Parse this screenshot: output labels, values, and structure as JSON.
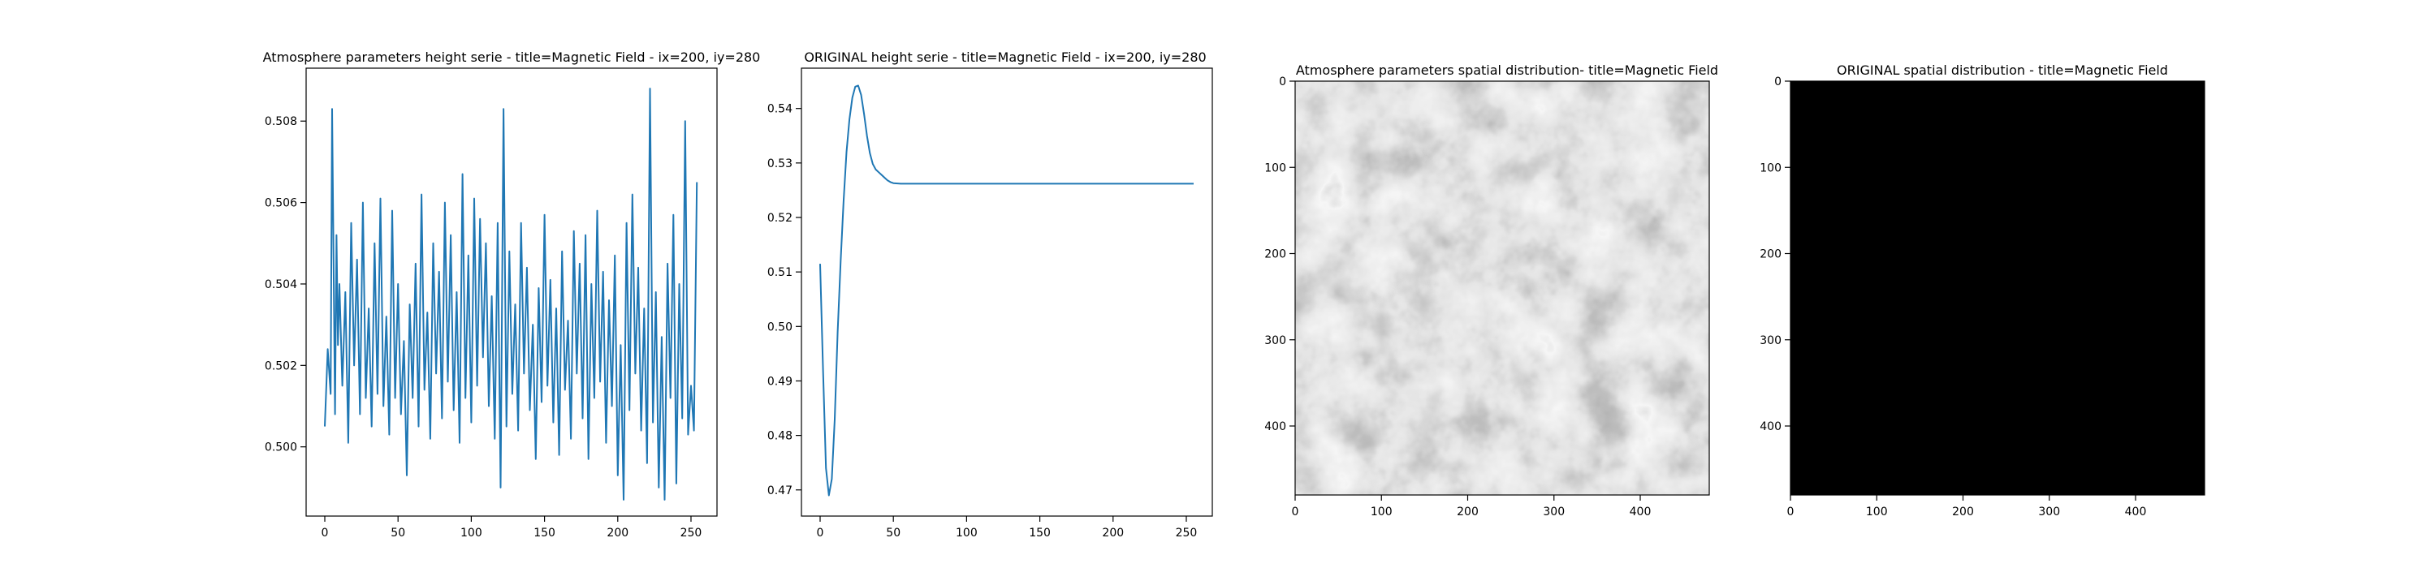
{
  "colors": {
    "series": "#1f77b4",
    "axis": "#000000",
    "background": "#ffffff"
  },
  "chart_data": [
    {
      "type": "line",
      "title": "Atmosphere parameters height serie - title=Magnetic Field - ix=200, iy=280",
      "xlabel": "",
      "ylabel": "",
      "xlim": [
        -12.75,
        267.75
      ],
      "ylim": [
        0.4983,
        0.5093
      ],
      "xticks": [
        0,
        50,
        100,
        150,
        200,
        250
      ],
      "yticks": [
        0.5,
        0.502,
        0.504,
        0.506,
        0.508
      ],
      "ytick_labels": [
        "0.500",
        "0.502",
        "0.504",
        "0.506",
        "0.508"
      ],
      "grid": false,
      "series": [
        {
          "color": "#1f77b4",
          "points": [
            [
              0,
              0.5005
            ],
            [
              2,
              0.5024
            ],
            [
              4,
              0.5013
            ],
            [
              5,
              0.5083
            ],
            [
              7,
              0.5008
            ],
            [
              8,
              0.5052
            ],
            [
              9,
              0.5025
            ],
            [
              10,
              0.504
            ],
            [
              12,
              0.5015
            ],
            [
              14,
              0.5038
            ],
            [
              16,
              0.5001
            ],
            [
              18,
              0.5055
            ],
            [
              20,
              0.502
            ],
            [
              22,
              0.5046
            ],
            [
              24,
              0.5008
            ],
            [
              26,
              0.506
            ],
            [
              28,
              0.5012
            ],
            [
              30,
              0.5034
            ],
            [
              32,
              0.5005
            ],
            [
              34,
              0.505
            ],
            [
              36,
              0.5013
            ],
            [
              38,
              0.5061
            ],
            [
              40,
              0.501
            ],
            [
              42,
              0.5032
            ],
            [
              44,
              0.5003
            ],
            [
              46,
              0.5058
            ],
            [
              48,
              0.5012
            ],
            [
              50,
              0.504
            ],
            [
              52,
              0.5008
            ],
            [
              54,
              0.5026
            ],
            [
              56,
              0.4993
            ],
            [
              58,
              0.5035
            ],
            [
              60,
              0.5012
            ],
            [
              62,
              0.5045
            ],
            [
              64,
              0.5005
            ],
            [
              66,
              0.5062
            ],
            [
              68,
              0.5014
            ],
            [
              70,
              0.5033
            ],
            [
              72,
              0.5002
            ],
            [
              74,
              0.505
            ],
            [
              76,
              0.5018
            ],
            [
              78,
              0.5043
            ],
            [
              80,
              0.5007
            ],
            [
              82,
              0.506
            ],
            [
              84,
              0.5016
            ],
            [
              86,
              0.5052
            ],
            [
              88,
              0.5009
            ],
            [
              90,
              0.5038
            ],
            [
              92,
              0.5001
            ],
            [
              94,
              0.5067
            ],
            [
              96,
              0.5012
            ],
            [
              98,
              0.5047
            ],
            [
              100,
              0.5006
            ],
            [
              102,
              0.5061
            ],
            [
              104,
              0.5015
            ],
            [
              106,
              0.5056
            ],
            [
              108,
              0.5022
            ],
            [
              110,
              0.505
            ],
            [
              112,
              0.501
            ],
            [
              114,
              0.5037
            ],
            [
              116,
              0.5002
            ],
            [
              118,
              0.5055
            ],
            [
              120,
              0.499
            ],
            [
              122,
              0.5083
            ],
            [
              124,
              0.5005
            ],
            [
              126,
              0.5048
            ],
            [
              128,
              0.5013
            ],
            [
              130,
              0.5035
            ],
            [
              132,
              0.5004
            ],
            [
              134,
              0.5055
            ],
            [
              136,
              0.5018
            ],
            [
              138,
              0.5044
            ],
            [
              140,
              0.5009
            ],
            [
              142,
              0.503
            ],
            [
              144,
              0.4997
            ],
            [
              146,
              0.5039
            ],
            [
              148,
              0.5011
            ],
            [
              150,
              0.5057
            ],
            [
              152,
              0.5015
            ],
            [
              154,
              0.5041
            ],
            [
              156,
              0.5006
            ],
            [
              158,
              0.5034
            ],
            [
              160,
              0.4998
            ],
            [
              162,
              0.5048
            ],
            [
              164,
              0.5014
            ],
            [
              166,
              0.5031
            ],
            [
              168,
              0.5002
            ],
            [
              170,
              0.5053
            ],
            [
              172,
              0.5018
            ],
            [
              174,
              0.5045
            ],
            [
              176,
              0.5007
            ],
            [
              178,
              0.5052
            ],
            [
              180,
              0.4997
            ],
            [
              182,
              0.504
            ],
            [
              184,
              0.5012
            ],
            [
              186,
              0.5058
            ],
            [
              188,
              0.5016
            ],
            [
              190,
              0.5043
            ],
            [
              192,
              0.5001
            ],
            [
              194,
              0.5036
            ],
            [
              196,
              0.501
            ],
            [
              198,
              0.5047
            ],
            [
              200,
              0.4993
            ],
            [
              202,
              0.5025
            ],
            [
              204,
              0.4987
            ],
            [
              206,
              0.5055
            ],
            [
              208,
              0.5009
            ],
            [
              210,
              0.5062
            ],
            [
              212,
              0.5018
            ],
            [
              214,
              0.5044
            ],
            [
              216,
              0.5004
            ],
            [
              218,
              0.5034
            ],
            [
              220,
              0.4996
            ],
            [
              222,
              0.5088
            ],
            [
              224,
              0.5006
            ],
            [
              226,
              0.5038
            ],
            [
              228,
              0.499
            ],
            [
              230,
              0.5027
            ],
            [
              232,
              0.4987
            ],
            [
              234,
              0.5045
            ],
            [
              236,
              0.5012
            ],
            [
              238,
              0.5057
            ],
            [
              240,
              0.4991
            ],
            [
              242,
              0.504
            ],
            [
              244,
              0.5007
            ],
            [
              246,
              0.508
            ],
            [
              248,
              0.5003
            ],
            [
              250,
              0.5015
            ],
            [
              252,
              0.5004
            ],
            [
              254,
              0.5065
            ]
          ]
        }
      ]
    },
    {
      "type": "line",
      "title": "ORIGINAL height serie - title=Magnetic Field - ix=200, iy=280",
      "xlabel": "",
      "ylabel": "",
      "xlim": [
        -12.75,
        267.75
      ],
      "ylim": [
        0.4652,
        0.5474
      ],
      "xticks": [
        0,
        50,
        100,
        150,
        200,
        250
      ],
      "yticks": [
        0.47,
        0.48,
        0.49,
        0.5,
        0.51,
        0.52,
        0.53,
        0.54
      ],
      "ytick_labels": [
        "0.47",
        "0.48",
        "0.49",
        "0.50",
        "0.51",
        "0.52",
        "0.53",
        "0.54"
      ],
      "grid": false,
      "series": [
        {
          "color": "#1f77b4",
          "points": [
            [
              0,
              0.5115
            ],
            [
              2,
              0.492
            ],
            [
              4,
              0.474
            ],
            [
              6,
              0.469
            ],
            [
              8,
              0.472
            ],
            [
              10,
              0.483
            ],
            [
              12,
              0.499
            ],
            [
              14,
              0.512
            ],
            [
              16,
              0.523
            ],
            [
              18,
              0.532
            ],
            [
              20,
              0.538
            ],
            [
              22,
              0.542
            ],
            [
              24,
              0.544
            ],
            [
              26,
              0.5442
            ],
            [
              28,
              0.5425
            ],
            [
              30,
              0.539
            ],
            [
              32,
              0.535
            ],
            [
              34,
              0.5318
            ],
            [
              36,
              0.5298
            ],
            [
              38,
              0.5288
            ],
            [
              40,
              0.5283
            ],
            [
              42,
              0.5278
            ],
            [
              44,
              0.5273
            ],
            [
              46,
              0.5268
            ],
            [
              48,
              0.5265
            ],
            [
              50,
              0.5263
            ],
            [
              55,
              0.5262
            ],
            [
              60,
              0.5262
            ],
            [
              80,
              0.5262
            ],
            [
              120,
              0.5262
            ],
            [
              160,
              0.5262
            ],
            [
              200,
              0.5262
            ],
            [
              240,
              0.5262
            ],
            [
              255,
              0.5262
            ]
          ]
        }
      ]
    },
    {
      "type": "heatmap",
      "title": "Atmosphere parameters spatial distribution- title=Magnetic Field",
      "xlabel": "",
      "ylabel": "",
      "xlim": [
        0,
        480
      ],
      "ylim": [
        480,
        0
      ],
      "xticks": [
        0,
        100,
        200,
        300,
        400
      ],
      "yticks": [
        0,
        100,
        200,
        300,
        400
      ],
      "colormap": "gray",
      "pattern": "granulation network"
    },
    {
      "type": "heatmap",
      "title": "ORIGINAL spatial distribution - title=Magnetic Field",
      "xlabel": "",
      "ylabel": "",
      "xlim": [
        0,
        480
      ],
      "ylim": [
        480,
        0
      ],
      "xticks": [
        0,
        100,
        200,
        300,
        400
      ],
      "yticks": [
        0,
        100,
        200,
        300,
        400
      ],
      "colormap": "gray",
      "pattern": "uniform black"
    }
  ]
}
